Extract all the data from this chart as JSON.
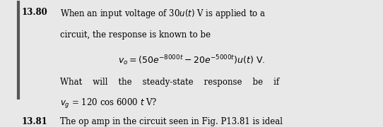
{
  "bg_color": "#e8e8e8",
  "text_color": "#000000",
  "figsize": [
    5.42,
    1.8
  ],
  "dpi": 100,
  "left_bar_color": "#555555",
  "problem_1_number": "13.80",
  "problem_2_number": "13.81",
  "line2": "circuit, the response is known to be",
  "line4": "The op amp in the circuit seen in Fig. P13.81 is ideal"
}
